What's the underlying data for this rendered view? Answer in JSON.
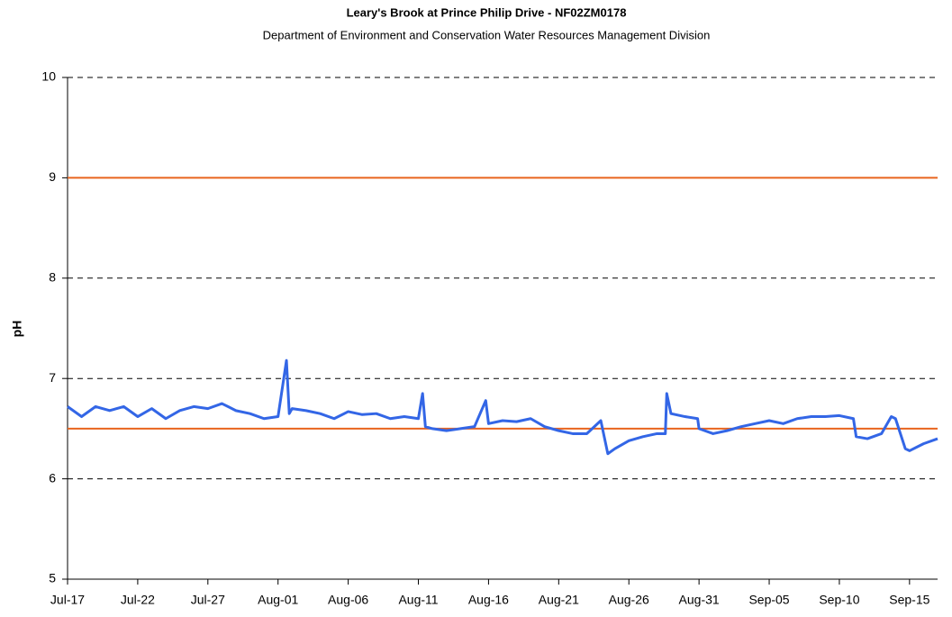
{
  "chart_data": {
    "type": "line",
    "title": "Leary's Brook at Prince Philip Drive - NF02ZM0178",
    "subtitle": "Department of Environment and Conservation Water Resources Management Division",
    "y_label": "pH",
    "x": [
      0,
      1,
      2,
      3,
      4,
      5,
      6,
      7,
      8,
      9,
      10,
      11,
      12,
      13,
      14,
      15,
      15.6,
      15.8,
      16,
      17,
      18,
      19,
      20,
      21,
      22,
      23,
      24,
      25,
      25.3,
      25.5,
      26,
      27,
      28,
      29,
      29.8,
      30,
      31,
      32,
      33,
      34,
      35,
      36,
      37,
      38,
      38.5,
      39,
      40,
      41,
      42,
      42.6,
      42.7,
      43,
      44,
      44.9,
      45,
      46,
      47,
      48,
      49,
      50,
      51,
      52,
      53,
      54,
      55,
      56,
      56.2,
      57,
      58,
      58.7,
      59,
      59.7,
      60,
      61,
      62
    ],
    "series": [
      {
        "name": "pH",
        "color": "#3366e6",
        "values": [
          6.72,
          6.62,
          6.72,
          6.68,
          6.72,
          6.62,
          6.7,
          6.6,
          6.68,
          6.72,
          6.7,
          6.75,
          6.68,
          6.65,
          6.6,
          6.62,
          7.18,
          6.65,
          6.7,
          6.68,
          6.65,
          6.6,
          6.67,
          6.64,
          6.65,
          6.6,
          6.62,
          6.6,
          6.85,
          6.52,
          6.5,
          6.48,
          6.5,
          6.52,
          6.78,
          6.55,
          6.58,
          6.57,
          6.6,
          6.52,
          6.48,
          6.45,
          6.45,
          6.58,
          6.25,
          6.3,
          6.38,
          6.42,
          6.45,
          6.45,
          6.85,
          6.65,
          6.62,
          6.6,
          6.5,
          6.45,
          6.48,
          6.52,
          6.55,
          6.58,
          6.55,
          6.6,
          6.62,
          6.62,
          6.63,
          6.6,
          6.42,
          6.4,
          6.45,
          6.62,
          6.6,
          6.3,
          6.28,
          6.35,
          6.4
        ]
      }
    ],
    "reference_lines": [
      {
        "value": 9,
        "color": "#e8641e"
      },
      {
        "value": 6.5,
        "color": "#e8641e"
      }
    ],
    "xlim": [
      0,
      62
    ],
    "xticks": [
      {
        "value": 0,
        "label": "Jul-17"
      },
      {
        "value": 5,
        "label": "Jul-22"
      },
      {
        "value": 10,
        "label": "Jul-27"
      },
      {
        "value": 15,
        "label": "Aug-01"
      },
      {
        "value": 20,
        "label": "Aug-06"
      },
      {
        "value": 25,
        "label": "Aug-11"
      },
      {
        "value": 30,
        "label": "Aug-16"
      },
      {
        "value": 35,
        "label": "Aug-21"
      },
      {
        "value": 40,
        "label": "Aug-26"
      },
      {
        "value": 45,
        "label": "Aug-31"
      },
      {
        "value": 50,
        "label": "Sep-05"
      },
      {
        "value": 55,
        "label": "Sep-10"
      },
      {
        "value": 60,
        "label": "Sep-15"
      }
    ],
    "ylim": [
      5,
      10
    ],
    "yticks": [
      5,
      6,
      7,
      8,
      9,
      10
    ],
    "grid": true
  }
}
